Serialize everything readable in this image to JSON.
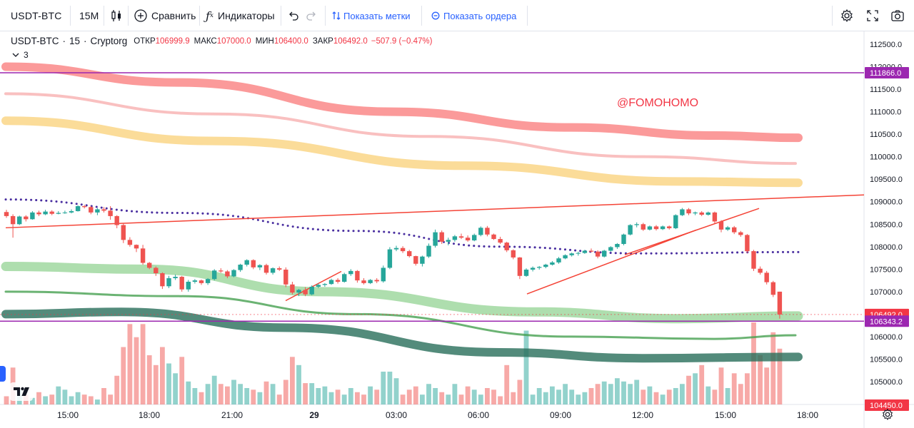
{
  "toolbar": {
    "symbol": "USDT-BTC",
    "interval": "15M",
    "compare_label": "Сравнить",
    "indicators_label": "Индикаторы",
    "show_marks_label": "Показать метки",
    "show_orders_label": "Показать ордера"
  },
  "legend": {
    "symbol": "USDT-BTC",
    "interval": "15",
    "exchange": "Cryptorg",
    "open_label": "ОТКР",
    "open": "106999.9",
    "high_label": "МАКС",
    "high": "107000.0",
    "low_label": "МИН",
    "low": "106400.0",
    "close_label": "ЗАКР",
    "close": "106492.0",
    "change": "−507.9 (−0.47%)",
    "collapse_count": "3"
  },
  "watermark": "@FOMOHOMO",
  "colors": {
    "up": "#26a69a",
    "down": "#ef5350",
    "horizontal_line": "#9c27b0",
    "last_price": "#f23645",
    "accent": "#2962ff"
  },
  "chart_data": {
    "type": "candlestick",
    "symbol": "USDT-BTC",
    "interval": "15",
    "price_axis": [
      "112500.0",
      "112000.0",
      "111500.0",
      "111000.0",
      "110500.0",
      "110000.0",
      "109500.0",
      "109000.0",
      "108500.0",
      "108000.0",
      "107500.0",
      "107000.0",
      "106500.0",
      "106000.0",
      "105500.0",
      "105000.0",
      "104450.0"
    ],
    "time_axis": [
      "15:00",
      "18:00",
      "21:00",
      "29",
      "03:00",
      "06:00",
      "09:00",
      "12:00",
      "15:00",
      "18:00"
    ],
    "y_range": [
      104450,
      112700
    ],
    "price_tags": [
      {
        "value": 111866.0,
        "label": "111866.0",
        "color": "#9c27b0"
      },
      {
        "value": 106492.0,
        "label": "106492.0",
        "color": "#f23645"
      },
      {
        "value": 106343.2,
        "label": "106343.2",
        "color": "#9c27b0"
      },
      {
        "value": 104450.0,
        "label": "104450.0",
        "color": "#f23645"
      }
    ],
    "candles": [
      [
        108770,
        108820,
        108640,
        108680
      ],
      [
        108680,
        108720,
        108200,
        108500
      ],
      [
        108500,
        108690,
        108480,
        108670
      ],
      [
        108670,
        108700,
        108560,
        108610
      ],
      [
        108610,
        108790,
        108600,
        108760
      ],
      [
        108760,
        108800,
        108680,
        108720
      ],
      [
        108720,
        108820,
        108700,
        108780
      ],
      [
        108780,
        108810,
        108700,
        108730
      ],
      [
        108730,
        108790,
        108720,
        108750
      ],
      [
        108750,
        108800,
        108730,
        108760
      ],
      [
        108760,
        108830,
        108740,
        108790
      ],
      [
        108790,
        108920,
        108780,
        108900
      ],
      [
        108900,
        108930,
        108850,
        108880
      ],
      [
        108880,
        108900,
        108720,
        108760
      ],
      [
        108760,
        108860,
        108700,
        108830
      ],
      [
        108830,
        108880,
        108760,
        108800
      ],
      [
        108800,
        108900,
        108600,
        108680
      ],
      [
        108680,
        108700,
        108410,
        108480
      ],
      [
        108480,
        108520,
        108080,
        108150
      ],
      [
        108150,
        108210,
        108000,
        108040
      ],
      [
        108040,
        108050,
        107880,
        107960
      ],
      [
        107960,
        108040,
        107600,
        107640
      ],
      [
        107640,
        107660,
        107500,
        107530
      ],
      [
        107530,
        107560,
        107350,
        107410
      ],
      [
        107410,
        107430,
        107060,
        107120
      ],
      [
        107120,
        107350,
        107080,
        107300
      ],
      [
        107300,
        107380,
        107260,
        107330
      ],
      [
        107330,
        107350,
        107000,
        107050
      ],
      [
        107050,
        107260,
        107000,
        107220
      ],
      [
        107220,
        107280,
        107180,
        107250
      ],
      [
        107250,
        107270,
        107150,
        107190
      ],
      [
        107190,
        107300,
        107150,
        107280
      ],
      [
        107280,
        107500,
        107250,
        107470
      ],
      [
        107470,
        107520,
        107420,
        107450
      ],
      [
        107450,
        107480,
        107300,
        107340
      ],
      [
        107340,
        107500,
        107320,
        107480
      ],
      [
        107480,
        107620,
        107440,
        107600
      ],
      [
        107600,
        107720,
        107560,
        107700
      ],
      [
        107700,
        107720,
        107500,
        107540
      ],
      [
        107540,
        107610,
        107480,
        107590
      ],
      [
        107590,
        107620,
        107380,
        107420
      ],
      [
        107420,
        107540,
        107380,
        107520
      ],
      [
        107520,
        107560,
        107460,
        107490
      ],
      [
        107490,
        107540,
        107100,
        107160
      ],
      [
        107160,
        107220,
        106940,
        106980
      ],
      [
        106980,
        107060,
        106900,
        107040
      ],
      [
        107040,
        107100,
        106900,
        106940
      ],
      [
        106940,
        107140,
        106920,
        107110
      ],
      [
        107110,
        107180,
        107080,
        107150
      ],
      [
        107150,
        107190,
        107110,
        107170
      ],
      [
        107170,
        107290,
        107150,
        107260
      ],
      [
        107260,
        107300,
        107180,
        107220
      ],
      [
        107220,
        107420,
        107200,
        107390
      ],
      [
        107390,
        107500,
        107350,
        107460
      ],
      [
        107460,
        107480,
        107200,
        107250
      ],
      [
        107250,
        107300,
        107160,
        107190
      ],
      [
        107190,
        107280,
        107170,
        107260
      ],
      [
        107260,
        107300,
        107190,
        107230
      ],
      [
        107230,
        107580,
        107200,
        107530
      ],
      [
        107530,
        107990,
        107500,
        107940
      ],
      [
        107940,
        108020,
        107900,
        107970
      ],
      [
        107970,
        108010,
        107860,
        107900
      ],
      [
        107900,
        107930,
        107760,
        107790
      ],
      [
        107790,
        107800,
        107580,
        107620
      ],
      [
        107620,
        107800,
        107560,
        107780
      ],
      [
        107780,
        108070,
        107750,
        108020
      ],
      [
        108020,
        108380,
        107980,
        108320
      ],
      [
        108320,
        108360,
        108060,
        108110
      ],
      [
        108110,
        108200,
        108030,
        108150
      ],
      [
        108150,
        108260,
        108110,
        108230
      ],
      [
        108230,
        108290,
        108170,
        108200
      ],
      [
        108200,
        108250,
        108110,
        108140
      ],
      [
        108140,
        108290,
        108120,
        108260
      ],
      [
        108260,
        108450,
        108230,
        108420
      ],
      [
        108420,
        108460,
        108230,
        108270
      ],
      [
        108270,
        108290,
        108150,
        108170
      ],
      [
        108170,
        108220,
        108060,
        108090
      ],
      [
        108090,
        108110,
        107880,
        107920
      ],
      [
        107920,
        107940,
        107720,
        107760
      ],
      [
        107760,
        107770,
        107280,
        107350
      ],
      [
        107350,
        107520,
        107330,
        107490
      ],
      [
        107490,
        107560,
        107450,
        107530
      ],
      [
        107530,
        107570,
        107490,
        107550
      ],
      [
        107550,
        107620,
        107520,
        107600
      ],
      [
        107600,
        107680,
        107580,
        107650
      ],
      [
        107650,
        107770,
        107620,
        107740
      ],
      [
        107740,
        107830,
        107720,
        107810
      ],
      [
        107810,
        107870,
        107780,
        107850
      ],
      [
        107850,
        107890,
        107800,
        107860
      ],
      [
        107860,
        107930,
        107840,
        107910
      ],
      [
        107910,
        107960,
        107870,
        107890
      ],
      [
        107890,
        107920,
        107740,
        107780
      ],
      [
        107780,
        107930,
        107760,
        107910
      ],
      [
        107910,
        108010,
        107890,
        107990
      ],
      [
        107990,
        108080,
        107950,
        108060
      ],
      [
        108060,
        108290,
        108030,
        108270
      ],
      [
        108270,
        108500,
        108250,
        108480
      ],
      [
        108480,
        108540,
        108430,
        108500
      ],
      [
        108500,
        108530,
        108350,
        108380
      ],
      [
        108380,
        108470,
        108360,
        108450
      ],
      [
        108450,
        108480,
        108360,
        108390
      ],
      [
        108390,
        108470,
        108370,
        108450
      ],
      [
        108450,
        108470,
        108380,
        108410
      ],
      [
        108410,
        108720,
        108390,
        108700
      ],
      [
        108700,
        108860,
        108680,
        108830
      ],
      [
        108830,
        108860,
        108700,
        108740
      ],
      [
        108740,
        108780,
        108700,
        108760
      ],
      [
        108760,
        108790,
        108680,
        108710
      ],
      [
        108710,
        108780,
        108690,
        108760
      ],
      [
        108760,
        108780,
        108520,
        108560
      ],
      [
        108560,
        108590,
        108320,
        108380
      ],
      [
        108380,
        108460,
        108350,
        108430
      ],
      [
        108430,
        108460,
        108280,
        108320
      ],
      [
        108320,
        108350,
        108220,
        108260
      ],
      [
        108260,
        108280,
        107860,
        107900
      ],
      [
        107900,
        107930,
        107460,
        107510
      ],
      [
        107510,
        107560,
        107380,
        107420
      ],
      [
        107420,
        107460,
        107160,
        107210
      ],
      [
        107210,
        107240,
        106880,
        106930
      ],
      [
        106999.9,
        107000.0,
        106400.0,
        106492.0
      ]
    ],
    "volume_scale": [
      0,
      1.0
    ],
    "volumes": [
      0.1,
      0.45,
      0.18,
      0.12,
      0.08,
      0.15,
      0.1,
      0.12,
      0.22,
      0.18,
      0.1,
      0.15,
      0.12,
      0.1,
      0.06,
      0.2,
      0.12,
      0.35,
      0.7,
      0.98,
      0.82,
      0.98,
      0.6,
      0.48,
      0.7,
      0.5,
      0.38,
      0.58,
      0.28,
      0.2,
      0.15,
      0.25,
      0.35,
      0.25,
      0.22,
      0.3,
      0.25,
      0.2,
      0.18,
      0.15,
      0.28,
      0.25,
      0.12,
      0.3,
      0.58,
      0.48,
      0.26,
      0.26,
      0.2,
      0.22,
      0.15,
      0.18,
      0.12,
      0.2,
      0.15,
      0.12,
      0.22,
      0.18,
      0.4,
      0.4,
      0.32,
      0.12,
      0.18,
      0.22,
      0.12,
      0.25,
      0.2,
      0.15,
      0.12,
      0.25,
      0.12,
      0.22,
      0.18,
      0.12,
      0.2,
      0.18,
      0.1,
      0.48,
      0.15,
      0.3,
      0.9,
      0.12,
      0.2,
      0.15,
      0.22,
      0.18,
      0.25,
      0.18,
      0.12,
      0.15,
      0.2,
      0.25,
      0.28,
      0.25,
      0.32,
      0.28,
      0.25,
      0.3,
      0.18,
      0.22,
      0.15,
      0.12,
      0.18,
      0.2,
      0.25,
      0.35,
      0.38,
      0.48,
      0.22,
      0.18,
      0.45,
      0.2,
      0.38,
      0.25,
      0.38,
      1.0,
      0.6,
      0.45,
      0.88,
      0.68
    ]
  }
}
